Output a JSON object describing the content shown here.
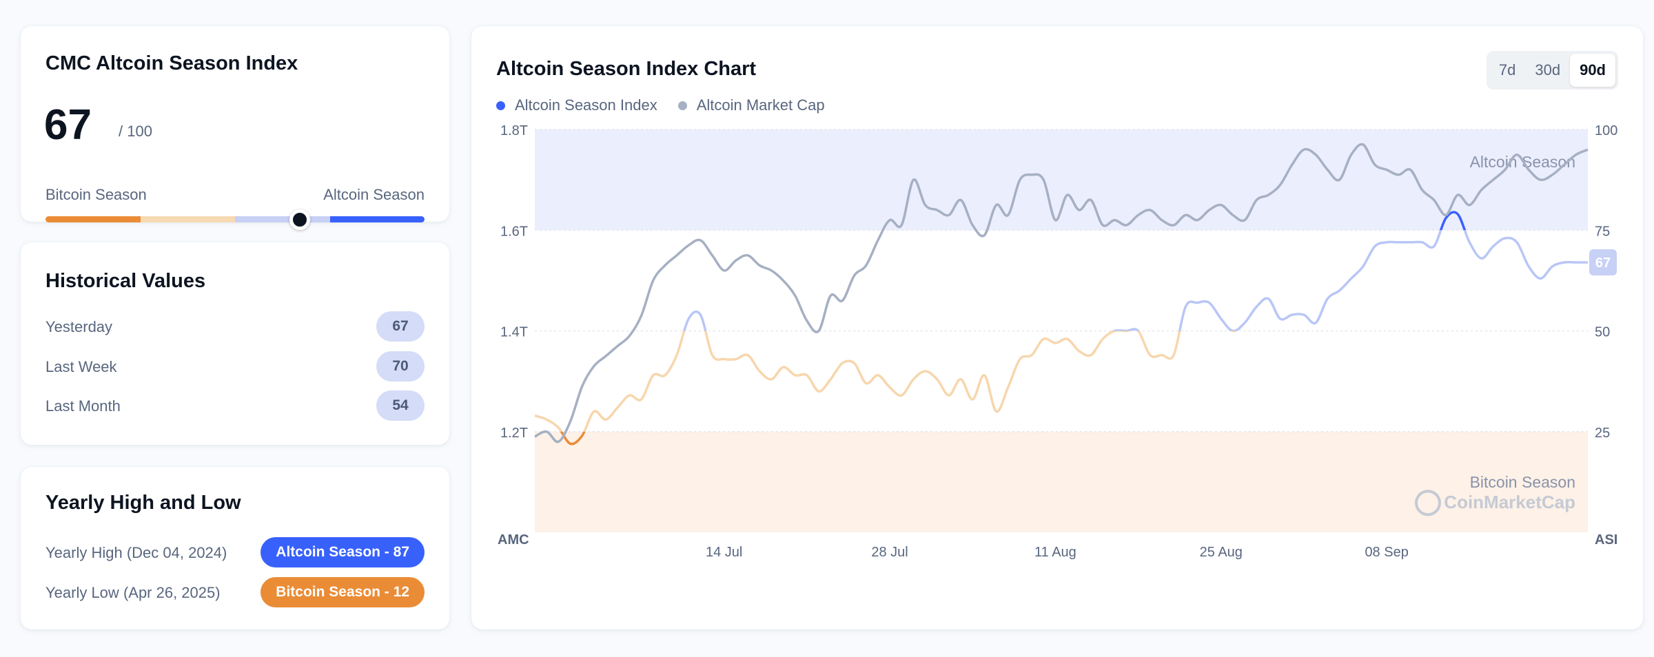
{
  "index_card": {
    "title": "CMC Altcoin Season Index",
    "value": "67",
    "max": "/ 100",
    "value_fraction": 0.67,
    "left_label": "Bitcoin Season",
    "right_label": "Altcoin Season",
    "colors": {
      "bitcoin": "#EA8C36",
      "bitcoin_light": "#F6D9B3",
      "altcoin_light": "#C7D0F5",
      "altcoin": "#3861FB",
      "knob": "#0D1421"
    }
  },
  "historical": {
    "title": "Historical Values",
    "rows": [
      {
        "label": "Yesterday",
        "value": "67"
      },
      {
        "label": "Last Week",
        "value": "70"
      },
      {
        "label": "Last Month",
        "value": "54"
      }
    ]
  },
  "yearly": {
    "title": "Yearly High and Low",
    "high": {
      "key": "Yearly High",
      "date": "(Dec 04, 2024)",
      "badge": "Altcoin Season - 87",
      "color": "#3861FB"
    },
    "low": {
      "key": "Yearly Low",
      "date": "(Apr 26, 2025)",
      "badge": "Bitcoin Season - 12",
      "color": "#EA8C36"
    }
  },
  "chart_title": "Altcoin Season Index Chart",
  "range_tabs": [
    {
      "label": "7d",
      "active": false
    },
    {
      "label": "30d",
      "active": false
    },
    {
      "label": "90d",
      "active": true
    }
  ],
  "legend": [
    {
      "label": "Altcoin Season Index",
      "color": "#3861FB"
    },
    {
      "label": "Altcoin Market Cap",
      "color": "#A6B0C3"
    }
  ],
  "chart_data": {
    "type": "line",
    "x": [
      "2025-06-28",
      "2025-06-29",
      "2025-06-30",
      "2025-07-01",
      "2025-07-02",
      "2025-07-03",
      "2025-07-04",
      "2025-07-05",
      "2025-07-06",
      "2025-07-07",
      "2025-07-08",
      "2025-07-09",
      "2025-07-10",
      "2025-07-11",
      "2025-07-12",
      "2025-07-13",
      "2025-07-14",
      "2025-07-15",
      "2025-07-16",
      "2025-07-17",
      "2025-07-18",
      "2025-07-19",
      "2025-07-20",
      "2025-07-21",
      "2025-07-22",
      "2025-07-23",
      "2025-07-24",
      "2025-07-25",
      "2025-07-26",
      "2025-07-27",
      "2025-07-28",
      "2025-07-29",
      "2025-07-30",
      "2025-07-31",
      "2025-08-01",
      "2025-08-02",
      "2025-08-03",
      "2025-08-04",
      "2025-08-05",
      "2025-08-06",
      "2025-08-07",
      "2025-08-08",
      "2025-08-09",
      "2025-08-10",
      "2025-08-11",
      "2025-08-12",
      "2025-08-13",
      "2025-08-14",
      "2025-08-15",
      "2025-08-16",
      "2025-08-17",
      "2025-08-18",
      "2025-08-19",
      "2025-08-20",
      "2025-08-21",
      "2025-08-22",
      "2025-08-23",
      "2025-08-24",
      "2025-08-25",
      "2025-08-26",
      "2025-08-27",
      "2025-08-28",
      "2025-08-29",
      "2025-08-30",
      "2025-08-31",
      "2025-09-01",
      "2025-09-02",
      "2025-09-03",
      "2025-09-04",
      "2025-09-05",
      "2025-09-06",
      "2025-09-07",
      "2025-09-08",
      "2025-09-09",
      "2025-09-10",
      "2025-09-11",
      "2025-09-12",
      "2025-09-13",
      "2025-09-14",
      "2025-09-15",
      "2025-09-16",
      "2025-09-17",
      "2025-09-18",
      "2025-09-19",
      "2025-09-20",
      "2025-09-21",
      "2025-09-22",
      "2025-09-23",
      "2025-09-24",
      "2025-09-25"
    ],
    "xticks": [
      "14 Jul",
      "28 Jul",
      "11 Aug",
      "25 Aug",
      "08 Sep"
    ],
    "xtick_dates": [
      "2025-07-14",
      "2025-07-28",
      "2025-08-11",
      "2025-08-25",
      "2025-09-08"
    ],
    "series": [
      {
        "name": "Altcoin Season Index",
        "axis": "right",
        "ylim": [
          0,
          100
        ],
        "values": [
          29,
          28,
          26,
          22,
          24,
          30,
          28,
          31,
          34,
          33,
          39,
          39,
          44,
          53,
          54,
          44,
          43,
          43,
          44,
          40,
          38,
          41,
          39,
          39,
          35,
          38,
          42,
          42,
          37,
          39,
          36,
          34,
          38,
          40,
          38,
          34,
          38,
          33,
          39,
          30,
          36,
          43,
          44,
          48,
          47,
          48,
          45,
          44,
          48,
          50,
          50,
          50,
          44,
          44,
          44,
          56,
          57,
          57,
          53,
          50,
          52,
          56,
          58,
          53,
          54,
          54,
          52,
          58,
          60,
          63,
          66,
          71,
          72,
          72,
          72,
          72,
          71,
          78,
          79,
          72,
          68,
          71,
          73,
          72,
          66,
          63,
          66,
          67,
          67,
          67
        ]
      },
      {
        "name": "Altcoin Market Cap",
        "axis": "left",
        "ylim": [
          1.0,
          1.8
        ],
        "values": [
          1.19,
          1.2,
          1.18,
          1.22,
          1.29,
          1.33,
          1.35,
          1.37,
          1.39,
          1.43,
          1.5,
          1.53,
          1.55,
          1.57,
          1.58,
          1.55,
          1.52,
          1.54,
          1.55,
          1.53,
          1.52,
          1.5,
          1.47,
          1.42,
          1.4,
          1.47,
          1.46,
          1.51,
          1.53,
          1.58,
          1.62,
          1.61,
          1.7,
          1.65,
          1.64,
          1.63,
          1.66,
          1.61,
          1.59,
          1.65,
          1.63,
          1.7,
          1.71,
          1.7,
          1.62,
          1.67,
          1.64,
          1.66,
          1.61,
          1.62,
          1.61,
          1.63,
          1.64,
          1.62,
          1.61,
          1.63,
          1.62,
          1.64,
          1.65,
          1.63,
          1.62,
          1.66,
          1.67,
          1.69,
          1.73,
          1.76,
          1.75,
          1.72,
          1.7,
          1.75,
          1.77,
          1.73,
          1.72,
          1.71,
          1.72,
          1.68,
          1.66,
          1.63,
          1.67,
          1.65,
          1.68,
          1.7,
          1.72,
          1.75,
          1.72,
          1.7,
          1.71,
          1.73,
          1.75,
          1.76
        ]
      }
    ],
    "left_axis": {
      "label": "AMC",
      "ticks": [
        "1.2T",
        "1.4T",
        "1.6T",
        "1.8T"
      ],
      "tick_values": [
        1.2,
        1.4,
        1.6,
        1.8
      ],
      "ylim": [
        1.0,
        1.8
      ]
    },
    "right_axis": {
      "label": "ASI",
      "ticks": [
        "25",
        "50",
        "75",
        "100"
      ],
      "tick_values": [
        25,
        50,
        75,
        100
      ],
      "ylim": [
        0,
        100
      ]
    },
    "bands": [
      {
        "label": "Altcoin Season",
        "from": 75,
        "to": 100,
        "color": "#EBEEFD"
      },
      {
        "label": "Bitcoin Season",
        "from": 0,
        "to": 25,
        "color": "#FDF1E8"
      }
    ],
    "current_marker": {
      "value": "67",
      "color": "#C7D0F5"
    },
    "watermark": "CoinMarketCap",
    "grid": true
  }
}
